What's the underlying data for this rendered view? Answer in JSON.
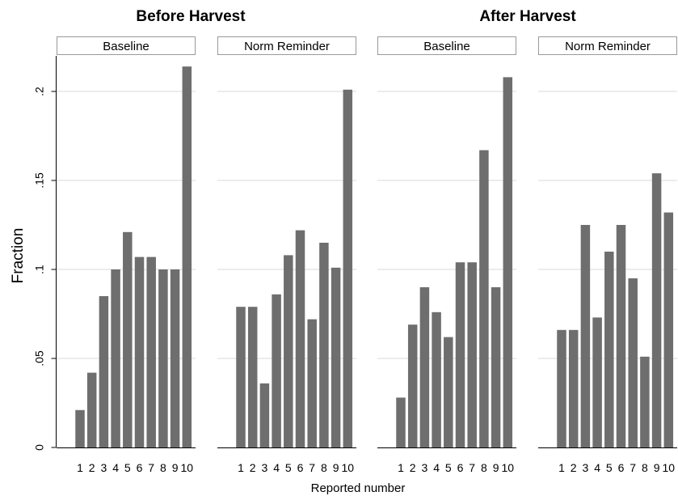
{
  "chart_data": {
    "type": "bar",
    "ylabel": "Fraction",
    "xlabel": "Reported number",
    "ylim": [
      0,
      0.22
    ],
    "yticks": [
      0,
      0.05,
      0.1,
      0.15,
      0.2
    ],
    "ytick_labels": [
      "0",
      ".05",
      ".1",
      ".15",
      ".2"
    ],
    "categories": [
      "1",
      "2",
      "3",
      "4",
      "5",
      "6",
      "7",
      "8",
      "9",
      "10"
    ],
    "grid": true,
    "bar_color": "#6e6e6e",
    "groups": [
      {
        "title": "Before Harvest",
        "panels": [
          {
            "label": "Baseline",
            "values": [
              0.021,
              0.042,
              0.085,
              0.1,
              0.121,
              0.107,
              0.107,
              0.1,
              0.1,
              0.214
            ]
          },
          {
            "label": "Norm Reminder",
            "values": [
              0.079,
              0.079,
              0.036,
              0.086,
              0.108,
              0.122,
              0.072,
              0.115,
              0.101,
              0.201
            ]
          }
        ]
      },
      {
        "title": "After Harvest",
        "panels": [
          {
            "label": "Baseline",
            "values": [
              0.028,
              0.069,
              0.09,
              0.076,
              0.062,
              0.104,
              0.104,
              0.167,
              0.09,
              0.208
            ]
          },
          {
            "label": "Norm Reminder",
            "values": [
              0.066,
              0.066,
              0.125,
              0.073,
              0.11,
              0.125,
              0.095,
              0.051,
              0.154,
              0.132
            ]
          }
        ]
      }
    ]
  }
}
